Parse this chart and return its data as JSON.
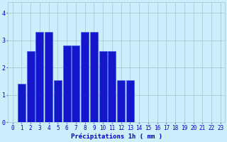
{
  "categories": [
    0,
    1,
    2,
    3,
    4,
    5,
    6,
    7,
    8,
    9,
    10,
    11,
    12,
    13,
    14,
    15,
    16,
    17,
    18,
    19,
    20,
    21,
    22,
    23
  ],
  "values": [
    0,
    1.4,
    2.6,
    3.3,
    3.3,
    1.55,
    2.8,
    2.8,
    3.3,
    3.3,
    2.6,
    2.6,
    1.55,
    1.55,
    0,
    0,
    0,
    0,
    0,
    0,
    0,
    0,
    0,
    0
  ],
  "bar_color": "#1515cc",
  "bar_edge_color": "#3355ee",
  "background_color": "#cceeff",
  "grid_color": "#aacccc",
  "xlabel": "Précipitations 1h ( mm )",
  "ylim": [
    0,
    4.4
  ],
  "xlim": [
    -0.5,
    23.5
  ],
  "yticks": [
    0,
    1,
    2,
    3,
    4
  ],
  "xticks": [
    0,
    1,
    2,
    3,
    4,
    5,
    6,
    7,
    8,
    9,
    10,
    11,
    12,
    13,
    14,
    15,
    16,
    17,
    18,
    19,
    20,
    21,
    22,
    23
  ],
  "tick_color": "#0000bb",
  "label_fontsize": 6.5,
  "tick_fontsize": 5.5
}
